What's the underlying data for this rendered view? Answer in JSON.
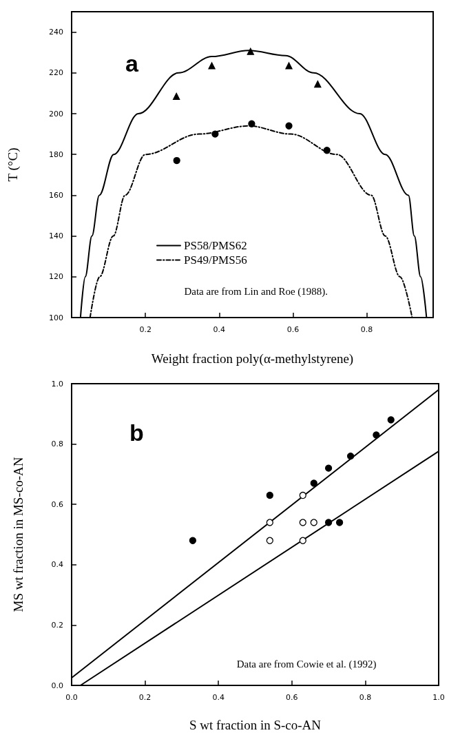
{
  "chart_data": [
    {
      "type": "line",
      "xlabel": "Weight fraction poly(α-methylstyrene)",
      "ylabel": "T (°C)",
      "annotations": [
        "a",
        "Data are from Lin and Roe (1988)."
      ],
      "xlim": [
        0,
        0.98
      ],
      "ylim": [
        100,
        250
      ],
      "xticks": [
        0.2,
        0.4,
        0.6,
        0.8
      ],
      "yticks": [
        100,
        120,
        140,
        160,
        180,
        200,
        220,
        240
      ],
      "legend": "bottom",
      "series": [
        {
          "name": "PS58/PMS62",
          "color": "#000000",
          "line_style": "solid",
          "marker": "none",
          "x": [
            0.024,
            0.037,
            0.055,
            0.075,
            0.114,
            0.181,
            0.29,
            0.38,
            0.48,
            0.58,
            0.656,
            0.781,
            0.85,
            0.913,
            0.929,
            0.946,
            0.962
          ],
          "values": [
            100,
            120,
            140,
            160,
            180,
            200,
            220,
            228,
            231,
            228.5,
            220,
            200,
            180,
            160,
            140,
            120,
            100
          ]
        },
        {
          "name": "PS49/PMS56",
          "color": "#000000",
          "line_style": "dashed",
          "marker": "none",
          "x": [
            0.05,
            0.076,
            0.113,
            0.145,
            0.2,
            0.345,
            0.48,
            0.594,
            0.719,
            0.812,
            0.85,
            0.89,
            0.923
          ],
          "values": [
            100,
            120,
            140,
            160,
            180,
            190,
            194,
            190,
            180,
            160,
            140,
            120,
            100
          ]
        },
        {
          "type": "scatter",
          "color": "#000000",
          "marker": "triangle",
          "x": [
            0.284,
            0.38,
            0.485,
            0.589,
            0.667
          ],
          "values": [
            208.5,
            223.5,
            230.5,
            223.5,
            214.5
          ]
        },
        {
          "type": "scatter",
          "color": "#000000",
          "marker": "circle",
          "x": [
            0.285,
            0.389,
            0.488,
            0.589,
            0.692
          ],
          "values": [
            177,
            190,
            195,
            194,
            182
          ]
        }
      ]
    },
    {
      "type": "scatter",
      "xlabel": "S wt fraction in S-co-AN",
      "ylabel": "MS wt fraction in MS-co-AN",
      "annotations": [
        "b",
        "Data are from Cowie et al. (1992)"
      ],
      "xlim": [
        0,
        1
      ],
      "ylim": [
        0,
        1
      ],
      "xticks": [
        {
          "value": 0,
          "label": "0.0"
        },
        0.2,
        0.4,
        0.6,
        0.8,
        {
          "value": 1,
          "label": "1.0"
        }
      ],
      "yticks": [
        {
          "value": 0,
          "label": "0.0"
        },
        0.2,
        0.4,
        0.6,
        0.8,
        {
          "value": 1,
          "label": "1.0"
        }
      ],
      "series": [
        {
          "type": "line",
          "color": "#000000",
          "line_style": "solid",
          "marker": "none",
          "x": [
            0,
            1
          ],
          "values": [
            0.025,
            0.98
          ]
        },
        {
          "type": "line",
          "color": "#000000",
          "line_style": "solid",
          "marker": "none",
          "x": [
            0.024,
            1
          ],
          "values": [
            0,
            0.776
          ]
        },
        {
          "color": "#000000",
          "marker": "circle",
          "x": [
            0.33,
            0.54,
            0.66,
            0.7,
            0.76,
            0.83,
            0.87,
            0.7,
            0.73
          ],
          "values": [
            0.48,
            0.63,
            0.67,
            0.72,
            0.76,
            0.83,
            0.88,
            0.54,
            0.54
          ]
        },
        {
          "color": "#ffffff",
          "marker": "circle",
          "x": [
            0.54,
            0.54,
            0.63,
            0.63,
            0.66,
            0.63
          ],
          "values": [
            0.54,
            0.48,
            0.63,
            0.54,
            0.54,
            0.48
          ]
        }
      ]
    }
  ]
}
